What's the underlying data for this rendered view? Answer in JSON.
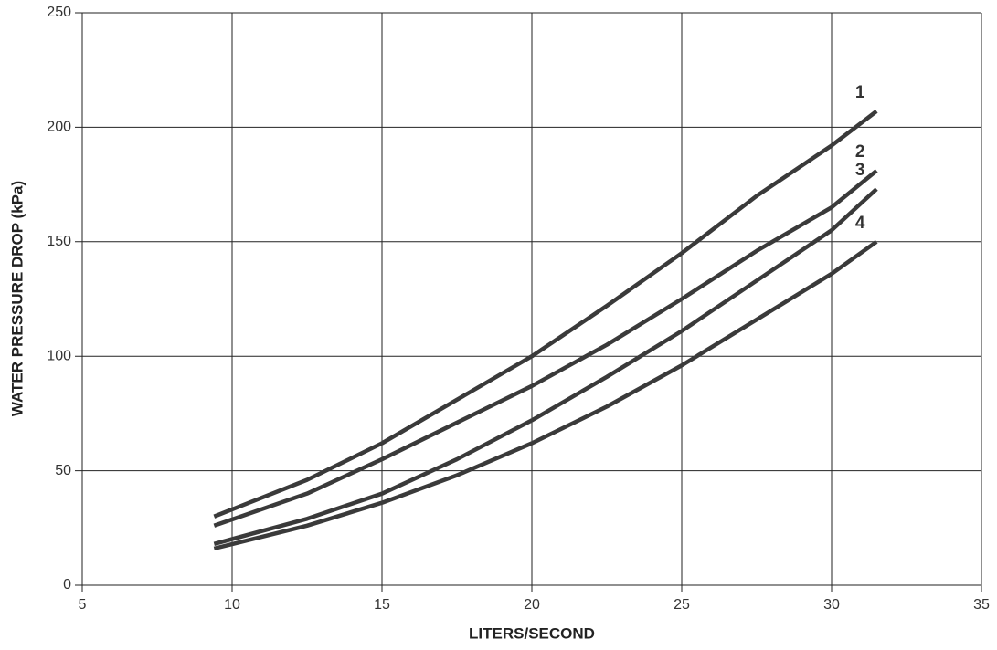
{
  "chart_data": {
    "type": "line",
    "x_label": "LITERS/SECOND",
    "y_label": "WATER PRESSURE DROP (kPa)",
    "xlim": [
      5,
      35
    ],
    "xticks": [
      5,
      10,
      15,
      20,
      25,
      30,
      35
    ],
    "ylim": [
      0,
      250
    ],
    "yticks": [
      0,
      50,
      100,
      150,
      200,
      250
    ],
    "grid": true,
    "x": [
      9.4,
      12.5,
      15,
      17.5,
      20,
      22.5,
      25,
      27.5,
      30,
      31.5
    ],
    "series": [
      {
        "name": "1",
        "color": "#3a3a3a",
        "values": [
          30,
          46,
          62,
          81,
          100,
          122,
          145,
          170,
          192,
          207
        ]
      },
      {
        "name": "2",
        "color": "#3a3a3a",
        "values": [
          26,
          40,
          55,
          71,
          87,
          105,
          125,
          146,
          165,
          181
        ]
      },
      {
        "name": "3",
        "color": "#3a3a3a",
        "values": [
          18,
          29,
          40,
          55,
          72,
          91,
          111,
          133,
          155,
          173
        ]
      },
      {
        "name": "4",
        "color": "#3a3a3a",
        "values": [
          16,
          26,
          36,
          48,
          62,
          78,
          96,
          116,
          136,
          150
        ]
      }
    ]
  }
}
